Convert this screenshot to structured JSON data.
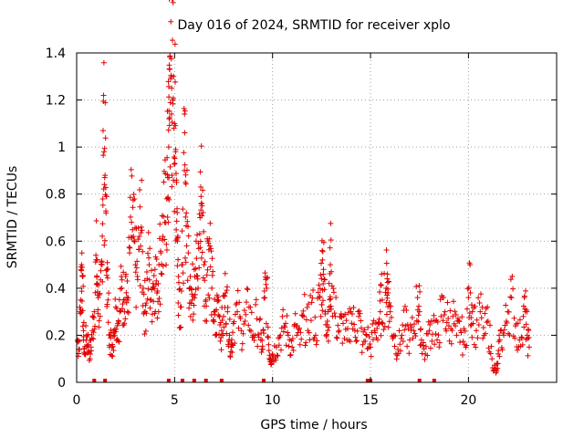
{
  "chart_data": {
    "type": "scatter",
    "title": "Day 016 of 2024, SRMTID for receiver xplo",
    "xlabel": "GPS time / hours",
    "ylabel": "SRMTID / TECUs",
    "xlim": [
      0,
      24.5
    ],
    "ylim": [
      0,
      1.4
    ],
    "xticks": [
      0,
      5,
      10,
      15,
      20
    ],
    "xtick_labels": [
      "0",
      "5",
      "10",
      "15",
      "20"
    ],
    "yticks": [
      0,
      0.2,
      0.4,
      0.6,
      0.8,
      1.0,
      1.2,
      1.4
    ],
    "ytick_labels": [
      "0",
      "0.2",
      "0.4",
      "0.6",
      "0.8",
      "1",
      "1.2",
      "1.4"
    ],
    "grid": true,
    "marker": "+",
    "color": "#e00000",
    "series": [
      {
        "name": "SRMTID",
        "points": [
          [
            0.05,
            0.18
          ],
          [
            0.12,
            0.14
          ],
          [
            0.2,
            0.35
          ],
          [
            0.25,
            0.5
          ],
          [
            0.3,
            0.45
          ],
          [
            0.35,
            0.22
          ],
          [
            0.4,
            0.12
          ],
          [
            0.5,
            0.2
          ],
          [
            0.6,
            0.16
          ],
          [
            0.7,
            0.12
          ],
          [
            0.8,
            0.22
          ],
          [
            0.9,
            0.3
          ],
          [
            1.0,
            0.52
          ],
          [
            1.05,
            0.42
          ],
          [
            1.1,
            0.36
          ],
          [
            1.2,
            0.28
          ],
          [
            1.3,
            0.5
          ],
          [
            1.35,
            1.07
          ],
          [
            1.4,
            0.98
          ],
          [
            1.45,
            0.88
          ],
          [
            1.5,
            0.72
          ],
          [
            1.55,
            0.48
          ],
          [
            1.6,
            0.35
          ],
          [
            1.7,
            0.2
          ],
          [
            1.8,
            0.15
          ],
          [
            1.9,
            0.22
          ],
          [
            2.0,
            0.32
          ],
          [
            2.1,
            0.25
          ],
          [
            2.2,
            0.3
          ],
          [
            2.3,
            0.4
          ],
          [
            2.4,
            0.35
          ],
          [
            2.5,
            0.45
          ],
          [
            2.6,
            0.3
          ],
          [
            2.7,
            0.55
          ],
          [
            2.8,
            0.68
          ],
          [
            2.9,
            0.62
          ],
          [
            3.0,
            0.5
          ],
          [
            3.1,
            0.45
          ],
          [
            3.2,
            0.62
          ],
          [
            3.3,
            0.66
          ],
          [
            3.4,
            0.4
          ],
          [
            3.5,
            0.3
          ],
          [
            3.6,
            0.44
          ],
          [
            3.7,
            0.5
          ],
          [
            3.8,
            0.35
          ],
          [
            3.9,
            0.42
          ],
          [
            4.0,
            0.48
          ],
          [
            4.1,
            0.38
          ],
          [
            4.2,
            0.5
          ],
          [
            4.3,
            0.55
          ],
          [
            4.4,
            0.62
          ],
          [
            4.5,
            0.68
          ],
          [
            4.6,
            0.78
          ],
          [
            4.65,
            0.87
          ],
          [
            4.7,
            1.0
          ],
          [
            4.72,
            1.12
          ],
          [
            4.75,
            1.33
          ],
          [
            4.8,
            1.29
          ],
          [
            4.85,
            1.25
          ],
          [
            4.9,
            1.2
          ],
          [
            4.95,
            1.3
          ],
          [
            5.0,
            1.1
          ],
          [
            5.05,
            0.98
          ],
          [
            5.1,
            0.85
          ],
          [
            5.15,
            0.6
          ],
          [
            5.2,
            0.45
          ],
          [
            5.3,
            0.32
          ],
          [
            5.4,
            0.5
          ],
          [
            5.5,
            0.9
          ],
          [
            5.55,
            0.85
          ],
          [
            5.6,
            0.72
          ],
          [
            5.7,
            0.55
          ],
          [
            5.8,
            0.45
          ],
          [
            5.9,
            0.35
          ],
          [
            6.0,
            0.48
          ],
          [
            6.1,
            0.6
          ],
          [
            6.2,
            0.4
          ],
          [
            6.3,
            0.7
          ],
          [
            6.35,
            0.79
          ],
          [
            6.4,
            0.75
          ],
          [
            6.5,
            0.5
          ],
          [
            6.6,
            0.35
          ],
          [
            6.7,
            0.6
          ],
          [
            6.8,
            0.58
          ],
          [
            6.9,
            0.4
          ],
          [
            7.0,
            0.3
          ],
          [
            7.1,
            0.2
          ],
          [
            7.2,
            0.35
          ],
          [
            7.3,
            0.28
          ],
          [
            7.4,
            0.22
          ],
          [
            7.5,
            0.28
          ],
          [
            7.6,
            0.38
          ],
          [
            7.7,
            0.3
          ],
          [
            7.8,
            0.2
          ],
          [
            7.9,
            0.15
          ],
          [
            8.0,
            0.25
          ],
          [
            8.2,
            0.3
          ],
          [
            8.4,
            0.22
          ],
          [
            8.6,
            0.26
          ],
          [
            8.8,
            0.32
          ],
          [
            9.0,
            0.2
          ],
          [
            9.2,
            0.27
          ],
          [
            9.4,
            0.18
          ],
          [
            9.5,
            0.14
          ],
          [
            9.6,
            0.36
          ],
          [
            9.7,
            0.4
          ],
          [
            9.8,
            0.16
          ],
          [
            9.9,
            0.1
          ],
          [
            10.0,
            0.12
          ],
          [
            10.2,
            0.15
          ],
          [
            10.4,
            0.2
          ],
          [
            10.6,
            0.24
          ],
          [
            10.8,
            0.2
          ],
          [
            11.0,
            0.15
          ],
          [
            11.2,
            0.24
          ],
          [
            11.4,
            0.16
          ],
          [
            11.6,
            0.28
          ],
          [
            11.8,
            0.22
          ],
          [
            12.0,
            0.34
          ],
          [
            12.2,
            0.2
          ],
          [
            12.4,
            0.36
          ],
          [
            12.5,
            0.44
          ],
          [
            12.55,
            0.52
          ],
          [
            12.6,
            0.48
          ],
          [
            12.7,
            0.3
          ],
          [
            12.8,
            0.26
          ],
          [
            12.9,
            0.32
          ],
          [
            12.95,
            0.5
          ],
          [
            13.0,
            0.47
          ],
          [
            13.2,
            0.28
          ],
          [
            13.4,
            0.22
          ],
          [
            13.6,
            0.25
          ],
          [
            13.8,
            0.18
          ],
          [
            14.0,
            0.3
          ],
          [
            14.2,
            0.22
          ],
          [
            14.4,
            0.28
          ],
          [
            14.6,
            0.16
          ],
          [
            14.8,
            0.2
          ],
          [
            15.0,
            0.15
          ],
          [
            15.2,
            0.22
          ],
          [
            15.4,
            0.25
          ],
          [
            15.5,
            0.3
          ],
          [
            15.6,
            0.35
          ],
          [
            15.8,
            0.4
          ],
          [
            15.85,
            0.44
          ],
          [
            15.9,
            0.38
          ],
          [
            16.0,
            0.3
          ],
          [
            16.2,
            0.2
          ],
          [
            16.4,
            0.14
          ],
          [
            16.6,
            0.2
          ],
          [
            16.8,
            0.24
          ],
          [
            17.0,
            0.18
          ],
          [
            17.2,
            0.22
          ],
          [
            17.4,
            0.36
          ],
          [
            17.5,
            0.3
          ],
          [
            17.6,
            0.18
          ],
          [
            17.8,
            0.12
          ],
          [
            18.0,
            0.22
          ],
          [
            18.2,
            0.26
          ],
          [
            18.4,
            0.18
          ],
          [
            18.6,
            0.28
          ],
          [
            18.8,
            0.3
          ],
          [
            19.0,
            0.24
          ],
          [
            19.2,
            0.28
          ],
          [
            19.4,
            0.2
          ],
          [
            19.6,
            0.22
          ],
          [
            19.8,
            0.16
          ],
          [
            20.0,
            0.36
          ],
          [
            20.1,
            0.38
          ],
          [
            20.2,
            0.3
          ],
          [
            20.4,
            0.22
          ],
          [
            20.6,
            0.3
          ],
          [
            20.8,
            0.2
          ],
          [
            21.0,
            0.26
          ],
          [
            21.2,
            0.1
          ],
          [
            21.4,
            0.04
          ],
          [
            21.5,
            0.08
          ],
          [
            21.6,
            0.18
          ],
          [
            21.8,
            0.2
          ],
          [
            22.0,
            0.3
          ],
          [
            22.2,
            0.36
          ],
          [
            22.4,
            0.24
          ],
          [
            22.6,
            0.18
          ],
          [
            22.8,
            0.28
          ],
          [
            22.9,
            0.3
          ],
          [
            23.0,
            0.2
          ],
          [
            23.1,
            0.15
          ]
        ]
      }
    ],
    "gap_markers_x": [
      0.9,
      1.45,
      4.7,
      5.4,
      6.0,
      6.6,
      7.4,
      9.55,
      14.85,
      15.0,
      17.5,
      18.25
    ]
  }
}
